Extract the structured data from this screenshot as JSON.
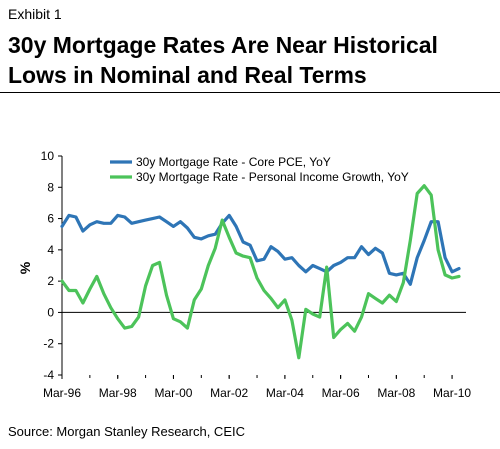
{
  "header": {
    "exhibit": "Exhibit 1",
    "title_line1": "30y Mortgage Rates Are Near Historical",
    "title_line2": "Lows in Nominal and Real Terms"
  },
  "source": "Source: Morgan Stanley Research, CEIC",
  "colors": {
    "series1": "#2e75b6",
    "series2": "#4cc35a",
    "axis": "#000000"
  },
  "chart_data": {
    "type": "line",
    "title": "30y Mortgage Rates Are Near Historical Lows in Nominal and Real Terms",
    "xlabel": "",
    "ylabel": "%",
    "xlim": [
      1996.0,
      2010.5
    ],
    "ylim": [
      -4,
      10
    ],
    "yticks": [
      -4,
      -2,
      0,
      2,
      4,
      6,
      8,
      10
    ],
    "xtick_positions": [
      1996.0,
      1998.0,
      2000.0,
      2002.0,
      2004.0,
      2006.0,
      2008.0,
      2010.0
    ],
    "xtick_labels": [
      "Mar-96",
      "Mar-98",
      "Mar-00",
      "Mar-02",
      "Mar-04",
      "Mar-06",
      "Mar-08",
      "Mar-10"
    ],
    "legend_position": "top-left",
    "series": [
      {
        "name": "30y Mortgage Rate - Core PCE, YoY",
        "color": "#2e75b6",
        "x": [
          1996.0,
          1996.25,
          1996.5,
          1996.75,
          1997.0,
          1997.25,
          1997.5,
          1997.75,
          1998.0,
          1998.25,
          1998.5,
          1998.75,
          1999.0,
          1999.25,
          1999.5,
          1999.75,
          2000.0,
          2000.25,
          2000.5,
          2000.75,
          2001.0,
          2001.25,
          2001.5,
          2001.75,
          2002.0,
          2002.25,
          2002.5,
          2002.75,
          2003.0,
          2003.25,
          2003.5,
          2003.75,
          2004.0,
          2004.25,
          2004.5,
          2004.75,
          2005.0,
          2005.25,
          2005.5,
          2005.75,
          2006.0,
          2006.25,
          2006.5,
          2006.75,
          2007.0,
          2007.25,
          2007.5,
          2007.75,
          2008.0,
          2008.25,
          2008.5,
          2008.75,
          2009.0,
          2009.25,
          2009.5,
          2009.75,
          2010.0,
          2010.25
        ],
        "values": [
          5.5,
          6.2,
          6.1,
          5.2,
          5.6,
          5.8,
          5.7,
          5.7,
          6.2,
          6.1,
          5.7,
          5.8,
          5.9,
          6.0,
          6.1,
          5.8,
          5.5,
          5.8,
          5.4,
          4.8,
          4.7,
          4.9,
          5.0,
          5.7,
          6.2,
          5.5,
          4.5,
          4.3,
          3.3,
          3.4,
          4.2,
          3.9,
          3.4,
          3.5,
          3.0,
          2.6,
          3.0,
          2.8,
          2.6,
          3.0,
          3.2,
          3.5,
          3.5,
          4.2,
          3.7,
          4.1,
          3.8,
          2.5,
          2.4,
          2.5,
          1.8,
          3.5,
          4.6,
          5.8,
          5.8,
          3.5,
          2.6,
          2.8
        ]
      },
      {
        "name": "30y Mortgage Rate - Personal Income Growth, YoY",
        "color": "#4cc35a",
        "x": [
          1996.0,
          1996.25,
          1996.5,
          1996.75,
          1997.0,
          1997.25,
          1997.5,
          1997.75,
          1998.0,
          1998.25,
          1998.5,
          1998.75,
          1999.0,
          1999.25,
          1999.5,
          1999.75,
          2000.0,
          2000.25,
          2000.5,
          2000.75,
          2001.0,
          2001.25,
          2001.5,
          2001.75,
          2002.0,
          2002.25,
          2002.5,
          2002.75,
          2003.0,
          2003.25,
          2003.5,
          2003.75,
          2004.0,
          2004.25,
          2004.5,
          2004.75,
          2005.0,
          2005.25,
          2005.5,
          2005.75,
          2006.0,
          2006.25,
          2006.5,
          2006.75,
          2007.0,
          2007.25,
          2007.5,
          2007.75,
          2008.0,
          2008.25,
          2008.5,
          2008.75,
          2009.0,
          2009.25,
          2009.5,
          2009.75,
          2010.0,
          2010.25
        ],
        "values": [
          2.0,
          1.4,
          1.4,
          0.6,
          1.5,
          2.3,
          1.2,
          0.3,
          -0.4,
          -1.0,
          -0.9,
          -0.3,
          1.7,
          3.0,
          3.2,
          1.1,
          -0.4,
          -0.6,
          -1.0,
          0.8,
          1.5,
          3.0,
          4.1,
          5.9,
          4.8,
          3.8,
          3.6,
          3.5,
          2.2,
          1.4,
          0.9,
          0.3,
          0.8,
          -0.5,
          -2.9,
          0.2,
          -0.1,
          -0.3,
          2.9,
          -1.6,
          -1.1,
          -0.7,
          -1.2,
          -0.3,
          1.2,
          0.9,
          0.6,
          1.1,
          0.7,
          1.9,
          4.6,
          7.6,
          8.1,
          7.5,
          4.0,
          2.4,
          2.2,
          2.3
        ]
      }
    ]
  }
}
